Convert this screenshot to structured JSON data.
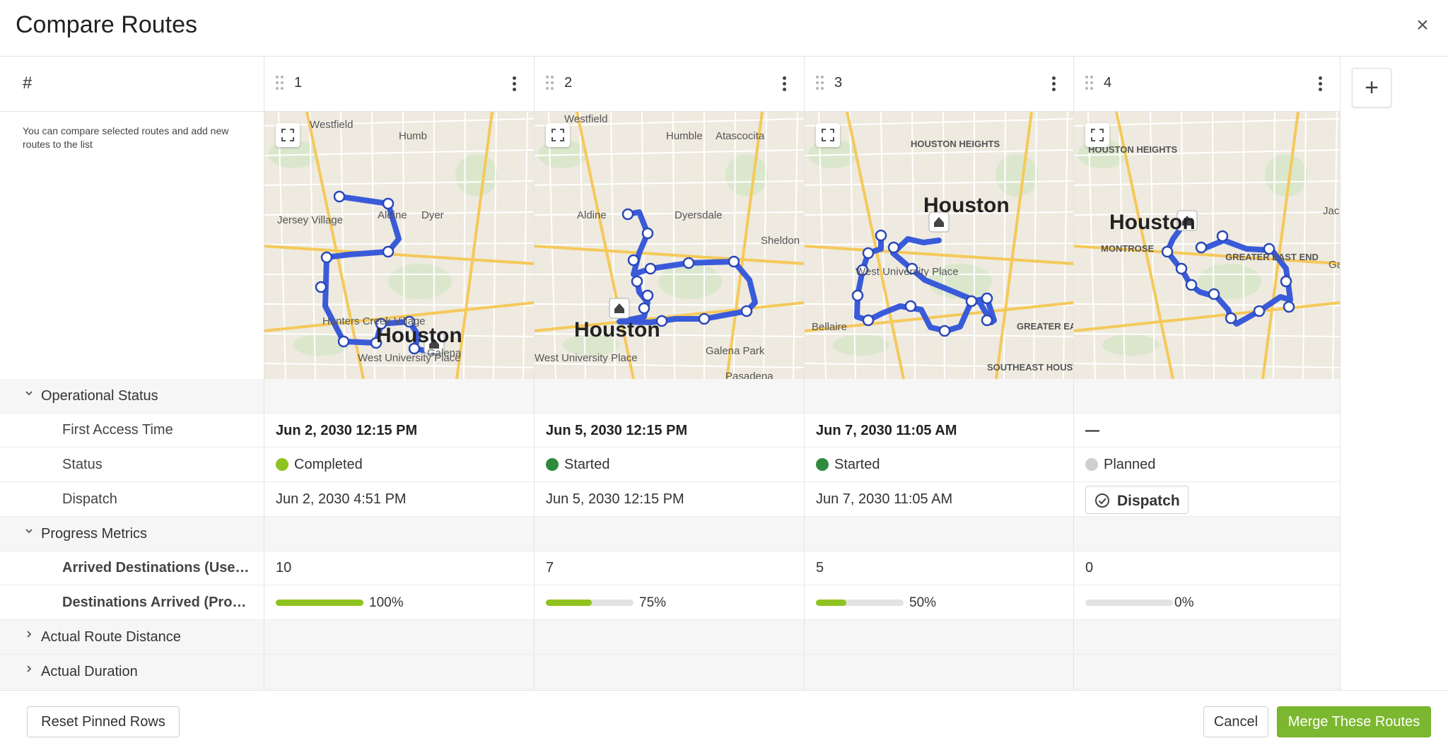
{
  "dialog": {
    "title": "Compare Routes",
    "close_icon": "×"
  },
  "label_column": {
    "header": "#",
    "hint": "You can compare selected routes and add new routes to the list"
  },
  "sections": {
    "operational_status": "Operational Status",
    "progress_metrics": "Progress Metrics",
    "actual_route_distance": "Actual Route Distance",
    "actual_duration": "Actual Duration"
  },
  "row_labels": {
    "first_access_time": "First Access Time",
    "status": "Status",
    "dispatch": "Dispatch",
    "arrived_destinations": "Arrived Destinations (User ...",
    "destinations_arrived_progress": "Destinations Arrived (Progr..."
  },
  "routes": [
    {
      "number": "1",
      "map_labels": [
        "Westfield",
        "Humb",
        "Jersey Village",
        "Aldine",
        "Dyer",
        "Hunters Creek Village",
        "Houston",
        "West University Place",
        "Galena"
      ],
      "first_access_time": "Jun 2, 2030 12:15 PM",
      "status": "Completed",
      "status_color": "#8fc31f",
      "dispatch": "Jun 2, 2030 4:51 PM",
      "arrived_destinations": "10",
      "progress": 1.0,
      "progress_label": "100%"
    },
    {
      "number": "2",
      "map_labels": [
        "Westfield",
        "Humble",
        "Atascocita",
        "Aldine",
        "Dyersdale",
        "Sheldon",
        "Houston",
        "West University Place",
        "Galena Park",
        "Pasadena"
      ],
      "first_access_time": "Jun 5, 2030 12:15 PM",
      "status": "Started",
      "status_color": "#2e8b3e",
      "dispatch": "Jun 5, 2030 12:15 PM",
      "arrived_destinations": "7",
      "progress": 0.75,
      "progress_label": "75%"
    },
    {
      "number": "3",
      "map_labels": [
        "HOUSTON HEIGHTS",
        "Houston",
        "West University Place",
        "Bellaire",
        "GREATER EAST END",
        "SOUTHEAST HOUSTON"
      ],
      "first_access_time": "Jun 7, 2030 11:05 AM",
      "status": "Started",
      "status_color": "#2e8b3e",
      "dispatch": "Jun 7, 2030 11:05 AM",
      "arrived_destinations": "5",
      "progress": 0.5,
      "progress_label": "50%"
    },
    {
      "number": "4",
      "map_labels": [
        "HOUSTON HEIGHTS",
        "Houston",
        "MONTROSE",
        "GREATER EAST END",
        "Jacin",
        "Gale"
      ],
      "first_access_time": "—",
      "status": "Planned",
      "status_color": "#cfcfcf",
      "dispatch_button": "Dispatch",
      "arrived_destinations": "0",
      "progress": 0.0,
      "progress_label": "0%"
    }
  ],
  "icons": {
    "add_column": "+",
    "chevron_down": "⌄",
    "chevron_right": "›"
  },
  "footer": {
    "reset_pinned_rows": "Reset Pinned Rows",
    "cancel": "Cancel",
    "merge": "Merge These Routes"
  },
  "colors": {
    "route_line": "#3a5bd9",
    "progress_fill": "#8fc31f",
    "progress_track": "#e3e3e3",
    "primary": "#7cb82f"
  }
}
